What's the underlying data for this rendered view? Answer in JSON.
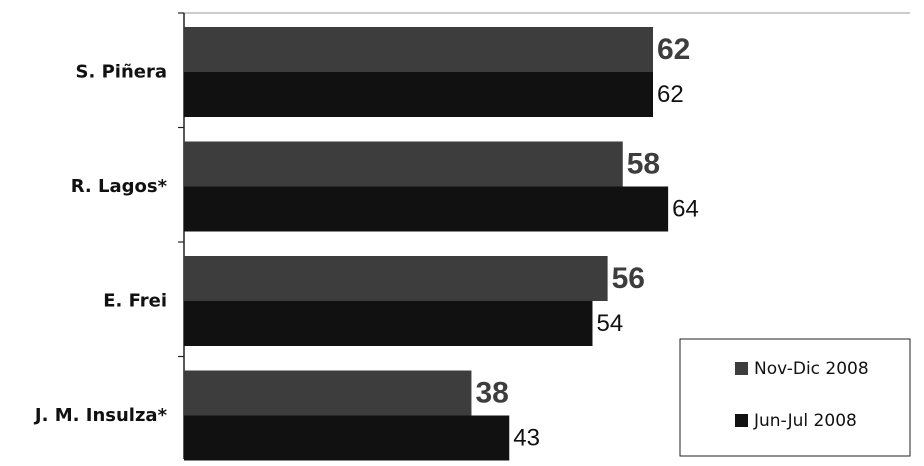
{
  "chart_data": {
    "type": "bar",
    "orientation": "horizontal",
    "categories": [
      "S. Piñera",
      "R. Lagos*",
      "E. Frei",
      "J. M. Insulza*"
    ],
    "series": [
      {
        "name": "Nov-Dic 2008",
        "values": [
          62,
          58,
          56,
          38
        ],
        "color": "#3d3d3d"
      },
      {
        "name": "Jun-Jul 2008",
        "values": [
          62,
          64,
          54,
          43
        ],
        "color": "#111111"
      }
    ],
    "xlim": [
      0,
      100
    ],
    "grid": false,
    "legend": "bottom-right"
  }
}
